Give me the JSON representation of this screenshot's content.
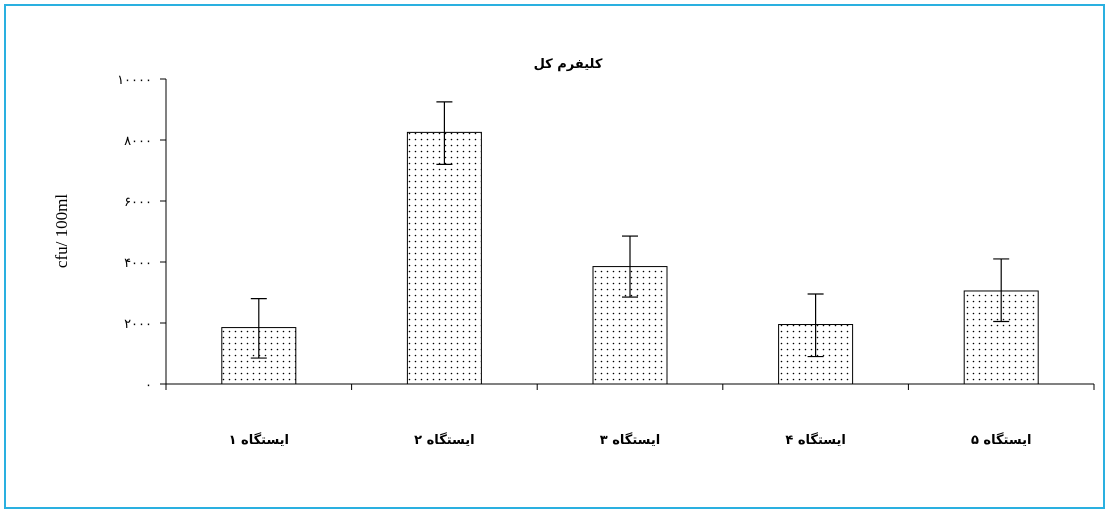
{
  "chart_data": {
    "type": "bar",
    "title": "کلیفرم کل",
    "xlabel": "",
    "ylabel": "cfu/ 100ml",
    "ylim": [
      0,
      10000
    ],
    "yticks": [
      0,
      2000,
      4000,
      6000,
      8000,
      10000
    ],
    "ytick_labels": [
      "۰",
      "۲۰۰۰",
      "۴۰۰۰",
      "۶۰۰۰",
      "۸۰۰۰",
      "۱۰۰۰۰"
    ],
    "categories": [
      "ایستگاه ۱",
      "ایستگاه ۲",
      "ایستگاه ۳",
      "ایستگاه ۴",
      "ایستگاه ۵"
    ],
    "values": [
      1850,
      8250,
      3850,
      1950,
      3050
    ],
    "error_bars": [
      {
        "low": 850,
        "high": 2800
      },
      {
        "low": 7200,
        "high": 9250
      },
      {
        "low": 2850,
        "high": 4850
      },
      {
        "low": 900,
        "high": 2950
      },
      {
        "low": 2050,
        "high": 4100
      }
    ],
    "bar_fill": "dotted",
    "grid": false,
    "legend": "none"
  },
  "colors": {
    "frame_border": "#2ab0e0",
    "bar_dots": "#000000",
    "bar_stroke": "#000000"
  }
}
